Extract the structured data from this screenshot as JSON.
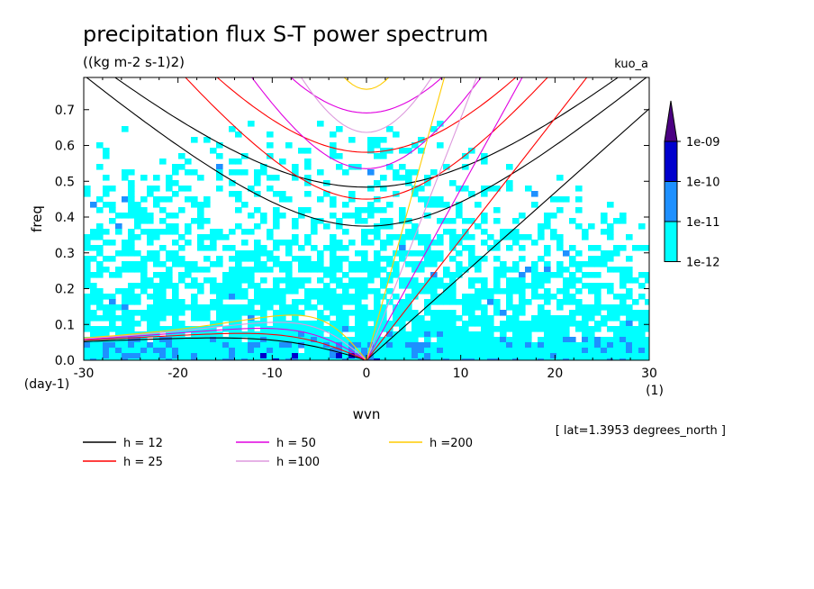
{
  "chart_data": {
    "type": "line",
    "title": "precipitation flux S-T power spectrum",
    "subtitle": "((kg m-2 s-1)2)",
    "dataset_label": "kuo_a",
    "xlabel": "wvn",
    "ylabel": "freq",
    "x_unit": "(1)",
    "y_unit": "(day-1)",
    "xlim": [
      -30,
      30
    ],
    "ylim": [
      0,
      0.79
    ],
    "x_ticks": [
      -30,
      -20,
      -10,
      0,
      10,
      20,
      30
    ],
    "y_ticks": [
      0.0,
      0.1,
      0.2,
      0.3,
      0.4,
      0.5,
      0.6,
      0.7
    ],
    "x_tick_labels": [
      "-30",
      "-20",
      "-10",
      "0",
      "10",
      "20",
      "30"
    ],
    "y_tick_labels": [
      "0.0",
      "0.1",
      "0.2",
      "0.3",
      "0.4",
      "0.5",
      "0.6",
      "0.7"
    ],
    "annotation": "[ lat=1.3953 degrees_north ]",
    "colorbar": {
      "levels": [
        "1e-12",
        "1e-11",
        "1e-10",
        "1e-09"
      ],
      "colors": [
        "#00ffff",
        "#1e90ff",
        "#0000cd",
        "#4b0082"
      ]
    },
    "series": [
      {
        "name": "h = 12",
        "color": "#000000",
        "h": 12
      },
      {
        "name": "h = 25",
        "color": "#ff0000",
        "h": 25
      },
      {
        "name": "h = 50",
        "color": "#e000e0",
        "h": 50
      },
      {
        "name": "h =100",
        "color": "#dd99dd",
        "h": 100
      },
      {
        "name": "h =200",
        "color": "#ffcc00",
        "h": 200
      }
    ]
  }
}
